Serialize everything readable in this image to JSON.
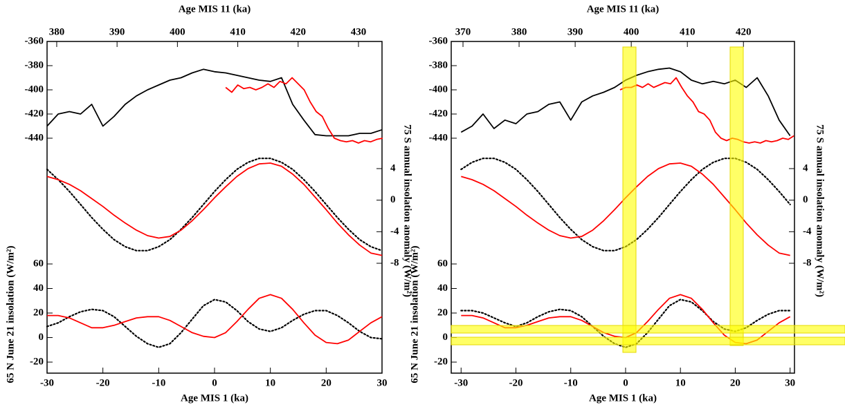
{
  "chart_data": [
    {
      "type": "line",
      "x_label": "Age MIS 1 (ka)",
      "x2_label": "Age MIS 11 (ka)",
      "y_label": "65 N June 21 insolation (W/m²)",
      "y2_label": "75 S annual insolation anomaly (W/m²)",
      "xlim": [
        -30,
        30
      ],
      "xticks": [
        -30,
        -20,
        -10,
        0,
        10,
        20,
        30
      ],
      "x2lim": [
        378.4,
        433.9
      ],
      "x2ticks": [
        380,
        390,
        400,
        410,
        420,
        430
      ],
      "ylim": [
        -29,
        60
      ],
      "yticks": [
        -20,
        0,
        20,
        40,
        60
      ],
      "ylim_upper": [
        -360,
        -440
      ],
      "yticks_upper": [
        -360,
        -380,
        -400,
        -420,
        -440
      ],
      "y2lim": [
        -8,
        4
      ],
      "y2ticks": [
        -8,
        -4,
        0,
        4
      ],
      "series": [
        {
          "color": "#000000",
          "style": "solid",
          "axis": "y_upper",
          "xaxis": "x",
          "x": [
            -30,
            -28,
            -26,
            -24,
            -22,
            -20,
            -18,
            -16,
            -14,
            -12,
            -10,
            -8,
            -6,
            -4,
            -2,
            0,
            2,
            4,
            6,
            8,
            10,
            12,
            14,
            16,
            18,
            20,
            22,
            24,
            26,
            28,
            30
          ],
          "values": [
            -430,
            -420,
            -418,
            -420,
            -412,
            -430,
            -422,
            -412,
            -405,
            -400,
            -396,
            -392,
            -390,
            -386,
            -383,
            -385,
            -386,
            -388,
            -390,
            -392,
            -393,
            -390,
            -412,
            -425,
            -437,
            -438,
            -438,
            -438,
            -436,
            -436,
            -433
          ]
        },
        {
          "color": "#ff0000",
          "style": "solid",
          "axis": "y_upper",
          "xaxis": "x2",
          "x": [
            408,
            409,
            410,
            411,
            412,
            413,
            414,
            415,
            416,
            417,
            418,
            419,
            420,
            421,
            422,
            423,
            424,
            425,
            426,
            427,
            428,
            429,
            430,
            431,
            432,
            433,
            434
          ],
          "values": [
            -398,
            -402,
            -396,
            -399,
            -398,
            -400,
            -398,
            -395,
            -398,
            -393,
            -395,
            -390,
            -395,
            -400,
            -410,
            -418,
            -422,
            -432,
            -440,
            -442,
            -443,
            -442,
            -444,
            -442,
            -443,
            -441,
            -440
          ]
        },
        {
          "color": "#000000",
          "style": "dotted",
          "axis": "y2",
          "xaxis": "x",
          "x": [
            -30,
            -28,
            -26,
            -24,
            -22,
            -20,
            -18,
            -16,
            -14,
            -12,
            -10,
            -8,
            -6,
            -4,
            -2,
            0,
            2,
            4,
            6,
            8,
            10,
            12,
            14,
            16,
            18,
            20,
            22,
            24,
            26,
            28,
            30
          ],
          "values": [
            3.9,
            2.6,
            1.1,
            -0.55,
            -2.2,
            -3.7,
            -5.0,
            -5.9,
            -6.4,
            -6.4,
            -5.9,
            -5.0,
            -3.7,
            -2.2,
            -0.55,
            1.1,
            2.6,
            3.9,
            4.8,
            5.3,
            5.3,
            4.8,
            3.9,
            2.6,
            1.1,
            -0.55,
            -2.2,
            -3.7,
            -5.0,
            -5.9,
            -6.4
          ]
        },
        {
          "color": "#ff0000",
          "style": "solid",
          "axis": "y2",
          "xaxis": "x",
          "x": [
            -30,
            -28,
            -26,
            -24,
            -22,
            -20,
            -18,
            -16,
            -14,
            -12,
            -10,
            -8,
            -6,
            -4,
            -2,
            0,
            2,
            4,
            6,
            8,
            10,
            12,
            14,
            16,
            18,
            20,
            22,
            24,
            26,
            28,
            30
          ],
          "values": [
            3.0,
            2.6,
            2.0,
            1.2,
            0.2,
            -0.8,
            -1.9,
            -2.9,
            -3.8,
            -4.5,
            -4.8,
            -4.6,
            -3.8,
            -2.6,
            -1.2,
            0.3,
            1.7,
            3.0,
            4.0,
            4.6,
            4.7,
            4.3,
            3.3,
            2.0,
            0.4,
            -1.2,
            -2.9,
            -4.4,
            -5.7,
            -6.7,
            -7.0
          ]
        },
        {
          "color": "#000000",
          "style": "dotted",
          "axis": "y",
          "xaxis": "x",
          "x": [
            -30,
            -28,
            -26,
            -24,
            -22,
            -20,
            -18,
            -16,
            -14,
            -12,
            -10,
            -8,
            -6,
            -4,
            -2,
            0,
            2,
            4,
            6,
            8,
            10,
            12,
            14,
            16,
            18,
            20,
            22,
            24,
            26,
            28,
            30
          ],
          "values": [
            9,
            12,
            17,
            21,
            23,
            22,
            17,
            9,
            1,
            -5,
            -8,
            -5,
            4,
            15,
            26,
            31,
            29,
            22,
            13,
            7,
            5,
            8,
            14,
            19,
            22,
            22,
            18,
            12,
            5,
            0,
            -1
          ]
        },
        {
          "color": "#ff0000",
          "style": "solid",
          "axis": "y",
          "xaxis": "x",
          "x": [
            -30,
            -28,
            -26,
            -24,
            -22,
            -20,
            -18,
            -16,
            -14,
            -12,
            -10,
            -8,
            -6,
            -4,
            -2,
            0,
            2,
            4,
            6,
            8,
            10,
            12,
            14,
            16,
            18,
            20,
            22,
            24,
            26,
            28,
            30
          ],
          "values": [
            18,
            18,
            16,
            12,
            8,
            8,
            10,
            13,
            16,
            17,
            17,
            14,
            9,
            4,
            1,
            0,
            4,
            13,
            23,
            32,
            35,
            32,
            23,
            12,
            2,
            -4,
            -5,
            -2,
            5,
            12,
            17
          ]
        }
      ]
    },
    {
      "type": "line",
      "x_label": "Age MIS 1 (ka)",
      "x2_label": "Age MIS 11 (ka)",
      "y_label": "65 N June 21 insolation (W/m²)",
      "y2_label": "75 S annual insolation anomaly (W/m²)",
      "xlim": [
        -31.8,
        30.8
      ],
      "xticks": [
        -30,
        -20,
        -10,
        0,
        10,
        20,
        30
      ],
      "x2lim": [
        367.9,
        429.1
      ],
      "x2ticks": [
        370,
        380,
        390,
        400,
        410,
        420
      ],
      "ylim": [
        -29,
        60
      ],
      "yticks": [
        -20,
        0,
        20,
        40,
        60
      ],
      "ylim_upper": [
        -360,
        -440
      ],
      "yticks_upper": [
        -360,
        -380,
        -400,
        -420,
        -440
      ],
      "y2lim": [
        -8,
        4
      ],
      "y2ticks": [
        -8,
        -4,
        0,
        4
      ],
      "series": [
        {
          "color": "#000000",
          "style": "solid",
          "axis": "y_upper",
          "xaxis": "x",
          "x": [
            -30,
            -28,
            -26,
            -24,
            -22,
            -20,
            -18,
            -16,
            -14,
            -12,
            -10,
            -8,
            -6,
            -4,
            -2,
            0,
            2,
            4,
            6,
            8,
            10,
            12,
            14,
            16,
            18,
            20,
            22,
            24,
            26,
            28,
            30
          ],
          "values": [
            -435,
            -430,
            -420,
            -432,
            -425,
            -428,
            -420,
            -418,
            -412,
            -410,
            -425,
            -410,
            -405,
            -402,
            -398,
            -392,
            -388,
            -385,
            -383,
            -382,
            -385,
            -392,
            -395,
            -393,
            -395,
            -392,
            -398,
            -390,
            -405,
            -425,
            -438
          ]
        },
        {
          "color": "#ff0000",
          "style": "solid",
          "axis": "y_upper",
          "xaxis": "x2",
          "x": [
            398,
            399,
            400,
            401,
            402,
            403,
            404,
            405,
            406,
            407,
            408,
            409,
            410,
            411,
            412,
            413,
            414,
            415,
            416,
            417,
            418,
            419,
            420,
            421,
            422,
            423,
            424,
            425,
            426,
            427,
            428,
            429
          ],
          "values": [
            -400,
            -398,
            -398,
            -396,
            -398,
            -395,
            -398,
            -396,
            -394,
            -395,
            -390,
            -398,
            -405,
            -410,
            -418,
            -420,
            -425,
            -435,
            -440,
            -442,
            -440,
            -441,
            -443,
            -444,
            -443,
            -444,
            -442,
            -443,
            -442,
            -440,
            -441,
            -438
          ]
        },
        {
          "color": "#000000",
          "style": "dotted",
          "axis": "y2",
          "xaxis": "x",
          "x": [
            -30,
            -28,
            -26,
            -24,
            -22,
            -20,
            -18,
            -16,
            -14,
            -12,
            -10,
            -8,
            -6,
            -4,
            -2,
            0,
            2,
            4,
            6,
            8,
            10,
            12,
            14,
            16,
            18,
            20,
            22,
            24,
            26,
            28,
            30
          ],
          "values": [
            3.9,
            4.8,
            5.3,
            5.3,
            4.8,
            3.9,
            2.6,
            1.1,
            -0.55,
            -2.2,
            -3.7,
            -5.0,
            -5.9,
            -6.4,
            -6.4,
            -5.9,
            -5.0,
            -3.7,
            -2.2,
            -0.55,
            1.1,
            2.6,
            3.9,
            4.8,
            5.3,
            5.3,
            4.8,
            3.9,
            2.6,
            1.1,
            -0.55
          ]
        },
        {
          "color": "#ff0000",
          "style": "solid",
          "axis": "y2",
          "xaxis": "x",
          "x": [
            -30,
            -28,
            -26,
            -24,
            -22,
            -20,
            -18,
            -16,
            -14,
            -12,
            -10,
            -8,
            -6,
            -4,
            -2,
            0,
            2,
            4,
            6,
            8,
            10,
            12,
            14,
            16,
            18,
            20,
            22,
            24,
            26,
            28,
            30
          ],
          "values": [
            3.0,
            2.6,
            2.0,
            1.2,
            0.2,
            -0.8,
            -1.9,
            -2.9,
            -3.8,
            -4.5,
            -4.8,
            -4.6,
            -3.8,
            -2.6,
            -1.2,
            0.3,
            1.7,
            3.0,
            4.0,
            4.6,
            4.7,
            4.3,
            3.3,
            2.0,
            0.4,
            -1.2,
            -2.9,
            -4.4,
            -5.7,
            -6.7,
            -7.0
          ]
        },
        {
          "color": "#000000",
          "style": "dotted",
          "axis": "y",
          "xaxis": "x",
          "x": [
            -30,
            -28,
            -26,
            -24,
            -22,
            -20,
            -18,
            -16,
            -14,
            -12,
            -10,
            -8,
            -6,
            -4,
            -2,
            0,
            2,
            4,
            6,
            8,
            10,
            12,
            14,
            16,
            18,
            20,
            22,
            24,
            26,
            28,
            30
          ],
          "values": [
            22,
            22,
            20,
            16,
            12,
            9,
            12,
            17,
            21,
            23,
            22,
            17,
            9,
            1,
            -5,
            -8,
            -5,
            4,
            15,
            26,
            31,
            29,
            22,
            13,
            7,
            5,
            8,
            14,
            19,
            22,
            22
          ]
        },
        {
          "color": "#ff0000",
          "style": "solid",
          "axis": "y",
          "xaxis": "x",
          "x": [
            -30,
            -28,
            -26,
            -24,
            -22,
            -20,
            -18,
            -16,
            -14,
            -12,
            -10,
            -8,
            -6,
            -4,
            -2,
            0,
            2,
            4,
            6,
            8,
            10,
            12,
            14,
            16,
            18,
            20,
            22,
            24,
            26,
            28,
            30
          ],
          "values": [
            18,
            18,
            16,
            12,
            8,
            8,
            10,
            13,
            16,
            17,
            17,
            14,
            9,
            4,
            1,
            0,
            4,
            13,
            23,
            32,
            35,
            32,
            23,
            12,
            2,
            -4,
            -5,
            -2,
            5,
            12,
            17
          ]
        }
      ]
    }
  ]
}
